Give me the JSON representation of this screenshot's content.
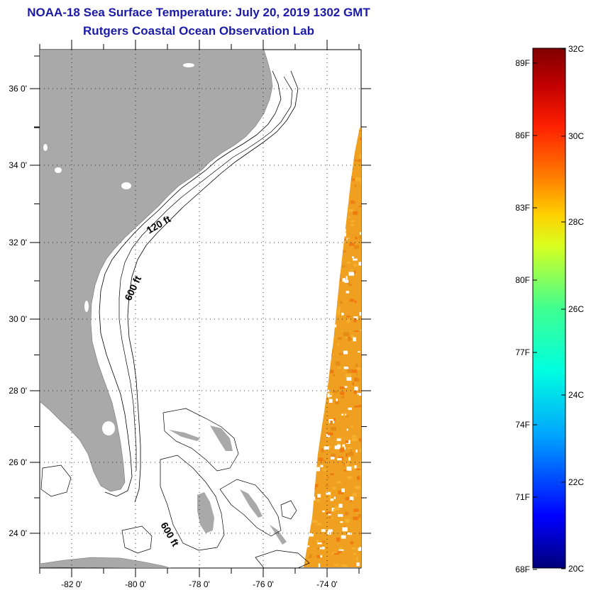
{
  "header": {
    "title": "NOAA-18 Sea Surface Temperature:  July 20, 2019 1302 GMT",
    "subtitle": "Rutgers Coastal Ocean Observation Lab"
  },
  "map": {
    "lat_labels": [
      "36 0'",
      "34 0'",
      "32 0'",
      "30 0'",
      "28 0'",
      "26 0'",
      "24 0'"
    ],
    "lon_labels": [
      "-82 0'",
      "-80 0'",
      "-78 0'",
      "-76 0'",
      "-74 0'"
    ],
    "contour_labels": [
      "120 ft",
      "600 ft",
      "600 ft"
    ],
    "land_color": "#a9a9a9",
    "ocean_color": "#ffffff"
  },
  "colorbar": {
    "fahrenheit_labels": [
      "89F",
      "86F",
      "83F",
      "80F",
      "77F",
      "74F",
      "71F",
      "68F"
    ],
    "celsius_labels": [
      "32C",
      "30C",
      "28C",
      "26C",
      "24C",
      "22C",
      "20C"
    ],
    "colors": [
      "#00007a",
      "#0000ff",
      "#00a0ff",
      "#00ffe0",
      "#40ff90",
      "#d8ff20",
      "#ffd000",
      "#ff8000",
      "#ff2000",
      "#c00000",
      "#800000"
    ]
  },
  "swath": {
    "colors": [
      "#f0a020",
      "#e88a18",
      "#f5b030",
      "#ee7a10"
    ]
  }
}
